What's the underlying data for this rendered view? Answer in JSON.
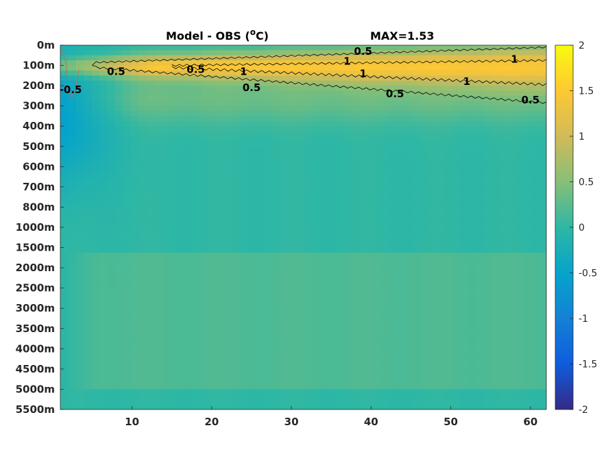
{
  "chart_data": {
    "type": "heatmap",
    "title": "Model - OBS (°C)",
    "title_parts": {
      "prefix": "Model - OBS (",
      "superscript": "o",
      "suffix": "C)"
    },
    "annotation": "MAX=1.53",
    "xlabel": "",
    "ylabel": "",
    "x_range": [
      1,
      62
    ],
    "x_ticks": [
      "10",
      "20",
      "30",
      "40",
      "50",
      "60"
    ],
    "y_ticks": [
      "0m",
      "100m",
      "200m",
      "300m",
      "400m",
      "500m",
      "600m",
      "700m",
      "800m",
      "1000m",
      "1500m",
      "2000m",
      "2500m",
      "3000m",
      "3500m",
      "4000m",
      "4500m",
      "5000m",
      "5500m"
    ],
    "colorbar": {
      "range": [
        -2,
        2
      ],
      "ticks": [
        "2",
        "1.5",
        "1",
        "0.5",
        "0",
        "-0.5",
        "-1",
        "-1.5",
        "-2"
      ],
      "colormap": "parula"
    },
    "contour_levels": [
      -0.5,
      0.5,
      1
    ],
    "contour_labels": [
      {
        "text": "0.5",
        "x": 18,
        "depth_level": 1.2
      },
      {
        "text": "0.5",
        "x": 39,
        "depth_level": 0.3
      },
      {
        "text": "1",
        "x": 58,
        "depth_level": 0.7
      },
      {
        "text": "1",
        "x": 37,
        "depth_level": 0.8
      },
      {
        "text": "0.5",
        "x": 8,
        "depth_level": 1.3
      },
      {
        "text": "1",
        "x": 24,
        "depth_level": 1.3
      },
      {
        "text": "1",
        "x": 39,
        "depth_level": 1.4
      },
      {
        "text": "1",
        "x": 52,
        "depth_level": 1.8
      },
      {
        "text": "0.5",
        "x": 25,
        "depth_level": 2.1
      },
      {
        "text": "0.5",
        "x": 43,
        "depth_level": 2.4
      },
      {
        "text": "0.5",
        "x": 60,
        "depth_level": 2.7
      },
      {
        "text": "-0.5",
        "x": 2.3,
        "depth_level": 2.2
      }
    ],
    "grid": false,
    "legend": "none"
  }
}
